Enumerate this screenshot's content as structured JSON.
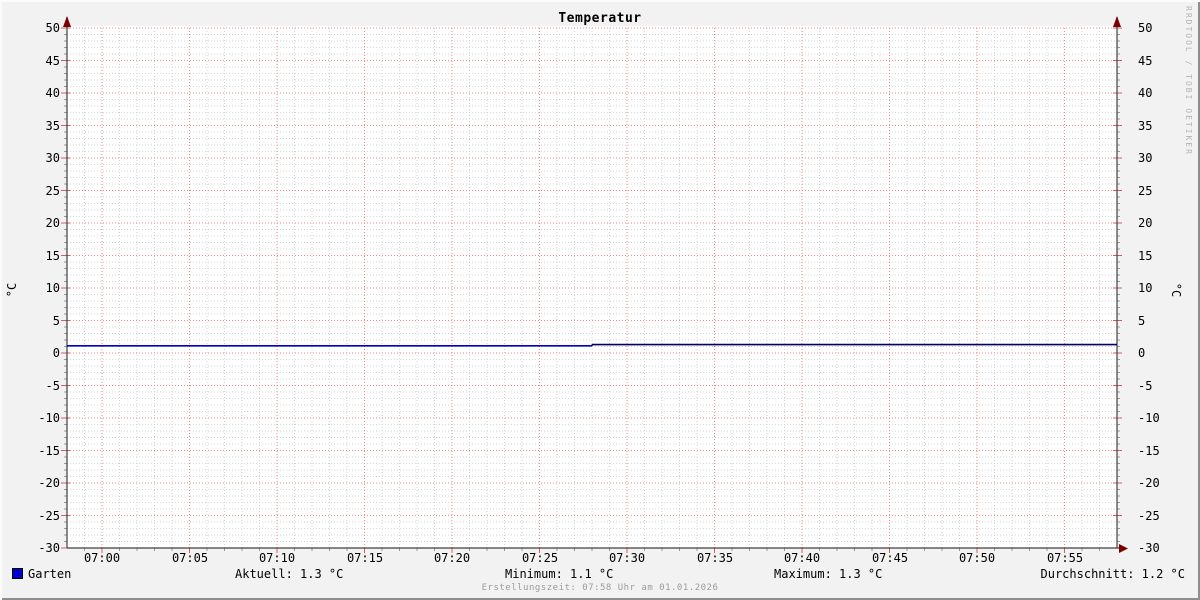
{
  "chart_data": {
    "type": "line",
    "title": "Temperatur",
    "y_axis_label": "°C",
    "y_axis_label_right": "°C",
    "ylim": [
      -30,
      50
    ],
    "ytick_interval": 5,
    "yticks": [
      50,
      45,
      40,
      35,
      30,
      25,
      20,
      15,
      10,
      5,
      0,
      -5,
      -10,
      -15,
      -20,
      -25,
      -30
    ],
    "xticks": [
      "07:00",
      "07:05",
      "07:10",
      "07:15",
      "07:20",
      "07:25",
      "07:30",
      "07:35",
      "07:40",
      "07:45",
      "07:50",
      "07:55"
    ],
    "x_window": {
      "start": "06:58",
      "end": "07:58"
    },
    "grid": {
      "minor_step_x_minutes": 1,
      "minor_step_y_degrees": 1,
      "major_color": "#ee8888",
      "minor_color": "#d4d4d4",
      "legend_position": "bottom",
      "grid_on": true
    },
    "series": [
      {
        "name": "Garten",
        "color": "#0000c8",
        "tail_color": "#000066",
        "points": [
          {
            "time": "06:58",
            "value": 1.1
          },
          {
            "time": "07:28",
            "value": 1.1
          },
          {
            "time": "07:28",
            "value": 1.3
          },
          {
            "time": "07:58",
            "value": 1.3
          }
        ]
      }
    ]
  },
  "legend": {
    "series_label": "Garten",
    "swatch_color": "#0000cc",
    "stats": {
      "aktuell": "Aktuell: 1.3 °C",
      "minimum": "Minimum: 1.1 °C",
      "maximum": "Maximum: 1.3 °C",
      "durchschnitt": "Durchschnitt: 1.2 °C"
    }
  },
  "footer": {
    "creation_text": "Erstellungszeit: 07:58 Uhr am 01.01.2026"
  },
  "watermark": "RRDTOOL / TOBI OETIKER",
  "colors": {
    "background": "#f2f2f2",
    "plot_background": "#ffffff",
    "axis": "#404040",
    "arrow": "#7a0000",
    "major_grid": "#ee8888",
    "minor_grid": "#d4d4d4",
    "line_main": "#0000c8",
    "line_tail": "#000066",
    "creation_text": "#9b9b9b",
    "watermark_text": "#b4b4b4"
  }
}
